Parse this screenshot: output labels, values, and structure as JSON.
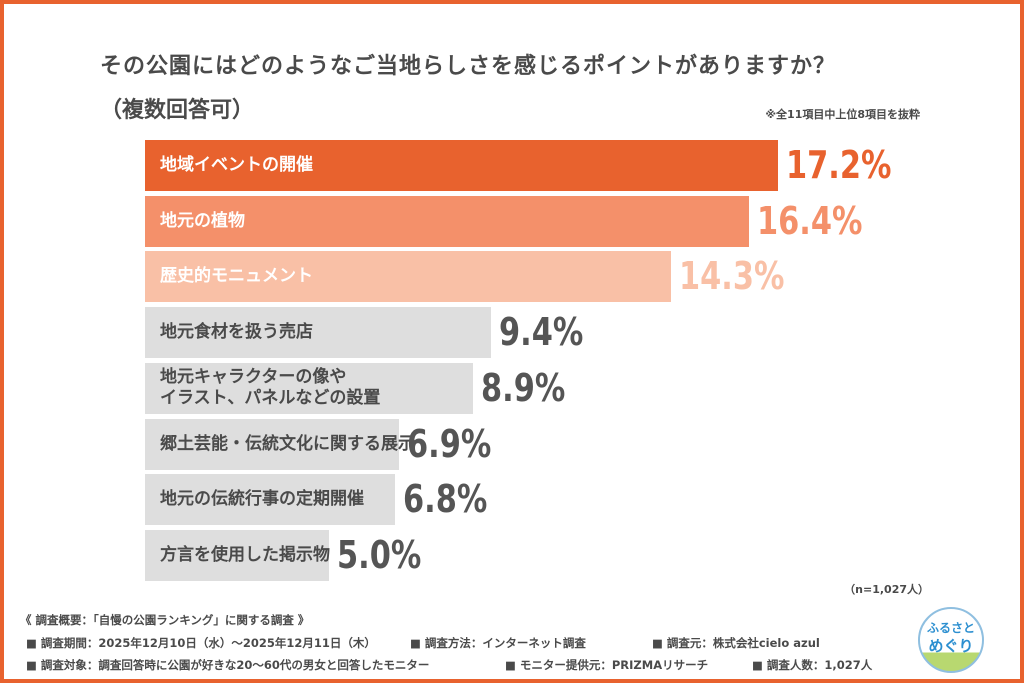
{
  "title": "その公園にはどのようなご当地らしさを感じるポイントがありますか？",
  "subtitle": "（複数回答可）",
  "note": "※全11項目中上位8項目を抜粋",
  "sample_note": "（n=1,027人）",
  "colors": {
    "top1": "#e8622e",
    "top2": "#f4906a",
    "top3": "#f9c0a6",
    "other": "#dedede",
    "label_dark": "#4a4a4a",
    "frame": "#e8622e"
  },
  "chart_data": {
    "type": "bar",
    "orientation": "horizontal",
    "categories": [
      "地域イベントの開催",
      "地元の植物",
      "歴史的モニュメント",
      "地元食材を扱う売店",
      "地元キャラクターの像や\nイラスト、パネルなどの設置",
      "郷土芸能・伝統文化に関する展示",
      "地元の伝統行事の定期開催",
      "方言を使用した掲示物"
    ],
    "values": [
      17.2,
      16.4,
      14.3,
      9.4,
      8.9,
      6.9,
      6.8,
      5.0
    ],
    "value_labels": [
      "17.2%",
      "16.4%",
      "14.3%",
      "9.4%",
      "8.9%",
      "6.9%",
      "6.8%",
      "5.0%"
    ],
    "unit": "%",
    "grid": false
  },
  "footer": {
    "heading": "《 調査概要：「自慢の公園ランキング」に関する調査 》",
    "period": "■ 調査期間：2025年12月10日（水）～2025年12月11日（木）",
    "method": "■ 調査方法：インターネット調査",
    "source": "■ 調査元：株式会社cielo azul",
    "target": "■ 調査対象：調査回答時に公園が好きな20～60代の男女と回答したモニター",
    "provider": "■ モニター提供元：PRIZMAリサーチ",
    "count": "■ 調査人数：1,027人"
  },
  "logo": {
    "line1": "ふるさと",
    "line2": "めぐり"
  }
}
